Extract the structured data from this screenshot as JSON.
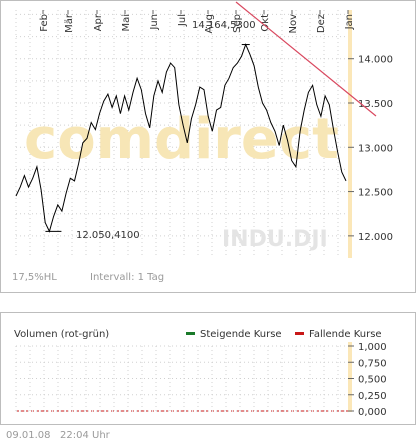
{
  "main_chart": {
    "watermark": "comdirect",
    "symbol": "INDU.DJI",
    "info_left": "17,5%HL",
    "info_interval": "Intervall: 1 Tag",
    "high_label": "14.164,5300",
    "low_label": "12.050,4100"
  },
  "volume_panel": {
    "title": "Volumen (rot-grün)",
    "legend_up": "Steigende Kurse",
    "legend_down": "Fallende Kurse",
    "legend_up_color": "#1a7a2a",
    "legend_down_color": "#c81818"
  },
  "footer": {
    "date": "09.01.08",
    "time": "22:04 Uhr"
  },
  "chart_data": [
    {
      "type": "line",
      "series": [
        {
          "values": [
            12.45,
            12.55,
            12.68,
            12.55,
            12.65,
            12.78,
            12.52,
            12.15,
            12.05,
            12.22,
            12.35,
            12.28,
            12.48,
            12.65,
            12.62,
            12.82,
            13.05,
            13.1,
            13.28,
            13.2,
            13.38,
            13.52,
            13.6,
            13.45,
            13.58,
            13.38,
            13.58,
            13.42,
            13.62,
            13.78,
            13.65,
            13.38,
            13.22,
            13.58,
            13.75,
            13.62,
            13.85,
            13.95,
            13.9,
            13.48,
            13.25,
            13.05,
            13.32,
            13.48,
            13.68,
            13.65,
            13.35,
            13.18,
            13.42,
            13.45,
            13.7,
            13.78,
            13.9,
            13.95,
            14.03,
            14.16,
            14.05,
            13.92,
            13.68,
            13.5,
            13.42,
            13.28,
            13.18,
            13.02,
            13.25,
            13.08,
            12.85,
            12.78,
            13.18,
            13.42,
            13.62,
            13.7,
            13.48,
            13.35,
            13.58,
            13.48,
            13.2,
            12.95,
            12.72,
            12.62
          ],
          "color": "#000000"
        }
      ],
      "x_tick_labels": [
        "Feb",
        "Mär",
        "Apr",
        "Mai",
        "Jun",
        "Jul",
        "Aug",
        "Sep",
        "Okt",
        "Nov",
        "Dez",
        "Jan"
      ],
      "ylim": [
        11.75,
        14.55
      ],
      "y_ticks": [
        "12.000",
        "12.500",
        "13.000",
        "13.500",
        "14.000"
      ],
      "high": 14164.53,
      "low": 12050.41,
      "trendline_color": "#d9485f"
    },
    {
      "type": "bar",
      "y_ticks": [
        "0,000",
        "0,250",
        "0,500",
        "0,750",
        "1,000"
      ],
      "ylim": [
        0,
        1
      ]
    }
  ]
}
